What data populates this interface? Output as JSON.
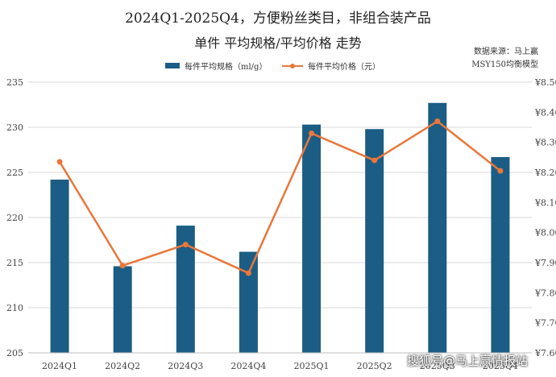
{
  "header": {
    "title_line1": "2024Q1-2025Q4，方便粉丝类目，非组合装产品",
    "title_line2": "单件 平均规格/平均价格 走势",
    "source_line1": "数据来源：马上赢",
    "source_line2": "MSY150均衡模型"
  },
  "watermark": "搜狐号@马上赢情报站",
  "colors": {
    "bar": "#1b5d84",
    "line": "#e8773a",
    "grid": "#d9d9d9"
  },
  "chart_data": {
    "type": "bar",
    "categories": [
      "2024Q1",
      "2024Q2",
      "2024Q3",
      "2024Q4",
      "2025Q1",
      "2025Q2",
      "2025Q3",
      "2025Q4"
    ],
    "series": [
      {
        "name": "每件平均规格（ml/g）",
        "type": "bar",
        "axis": "left",
        "values": [
          224.2,
          214.6,
          219.1,
          216.2,
          230.3,
          229.8,
          232.7,
          226.7
        ]
      },
      {
        "name": "每件平均价格（元）",
        "type": "line",
        "axis": "right",
        "values": [
          8.235,
          7.89,
          7.96,
          7.865,
          8.33,
          8.24,
          8.37,
          8.205
        ]
      }
    ],
    "y_left": {
      "min": 205,
      "max": 235,
      "step": 5,
      "ticks": [
        "205",
        "210",
        "215",
        "220",
        "225",
        "230",
        "235"
      ]
    },
    "y_right": {
      "min": 7.6,
      "max": 8.5,
      "step": 0.1,
      "ticks": [
        "¥7.60",
        "¥7.70",
        "¥7.80",
        "¥7.90",
        "¥8.00",
        "¥8.10",
        "¥8.20",
        "¥8.30",
        "¥8.40",
        "¥8.50"
      ]
    },
    "grid": true,
    "legend": "top-center"
  }
}
